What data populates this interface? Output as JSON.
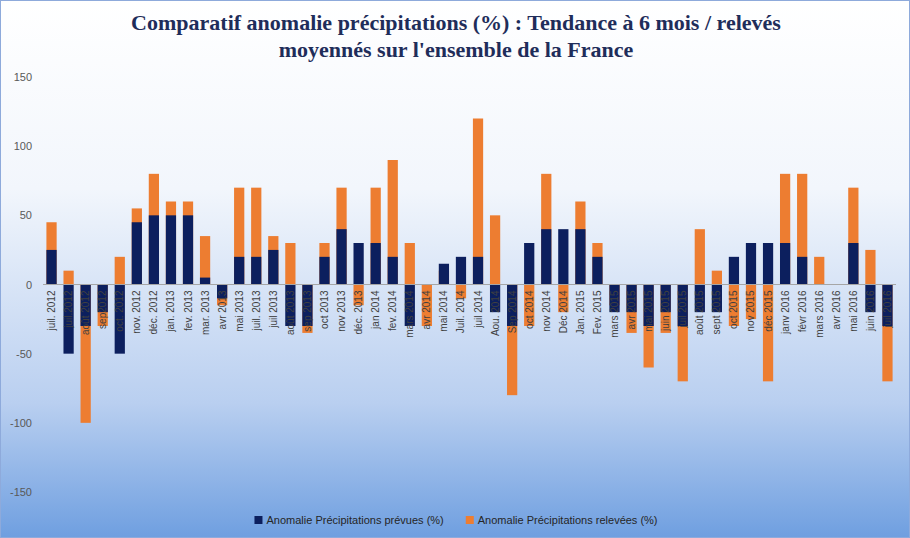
{
  "chart_data": {
    "type": "bar",
    "title": "Comparatif anomalie précipitations (%) : Tendance à 6 mois / relevés moyennés sur l'ensemble de la France",
    "categories": [
      "juil. 2012",
      "juil.2012",
      "août 2012",
      "sep2012",
      "oct. 2012",
      "nov. 2012",
      "déc. 2012",
      "jan. 2013",
      "fev. 2013",
      "mar. 2013",
      "avr 2013",
      "mai 2013",
      "juil. 2013",
      "juil 2013",
      "août 2013",
      "sep 2013",
      "oct 2013",
      "nov 2013",
      "déc. 2013",
      "jan 2014",
      "fev. 2014",
      "mars 2014",
      "avr 2014",
      "mai 2014",
      "Juil. 2014",
      "juil 2014",
      "Aou. 2014",
      "Sep 2014",
      "oct 2014",
      "nov 2014",
      "Déc 2014",
      "Jan. 2015",
      "Fev. 2015",
      "mars 2015",
      "avr 2015",
      "mai 2015",
      "juin 2015",
      "juil 2015",
      "août 2015",
      "sept 2015",
      "oct 2015",
      "nov 2015",
      "déc 2015",
      "janv 2016",
      "févr 2016",
      "mars 2016",
      "avr 2016",
      "mai 2016",
      "juin 2016",
      "juil 2016"
    ],
    "series": [
      {
        "name": "Anomalie Précipitations prévues (%)",
        "color": "#0c1f5e",
        "values": [
          25,
          -50,
          -30,
          -20,
          -50,
          45,
          50,
          50,
          50,
          5,
          -10,
          20,
          20,
          25,
          -30,
          -30,
          20,
          40,
          30,
          30,
          20,
          -30,
          0,
          15,
          20,
          20,
          -20,
          -30,
          30,
          40,
          40,
          40,
          20,
          -20,
          -20,
          -30,
          -20,
          -30,
          -20,
          -20,
          20,
          30,
          30,
          30,
          20,
          0,
          0,
          30,
          -20,
          -30
        ]
      },
      {
        "name": "Anomalie Précipitations relevées (%)",
        "color": "#ed7d31",
        "values": [
          45,
          10,
          -100,
          -30,
          20,
          55,
          80,
          60,
          60,
          35,
          -15,
          70,
          70,
          35,
          30,
          -35,
          30,
          70,
          -15,
          70,
          90,
          30,
          -30,
          10,
          -10,
          120,
          50,
          -80,
          -30,
          80,
          -20,
          60,
          30,
          -15,
          -35,
          -60,
          -35,
          -70,
          40,
          10,
          -30,
          -25,
          -70,
          80,
          80,
          20,
          0,
          70,
          25,
          -70
        ]
      }
    ],
    "ylim": [
      -150,
      150
    ],
    "yticks": [
      -150,
      -100,
      -50,
      0,
      50,
      100,
      150
    ],
    "grid": false,
    "stacked": false,
    "legend": "bottom"
  }
}
